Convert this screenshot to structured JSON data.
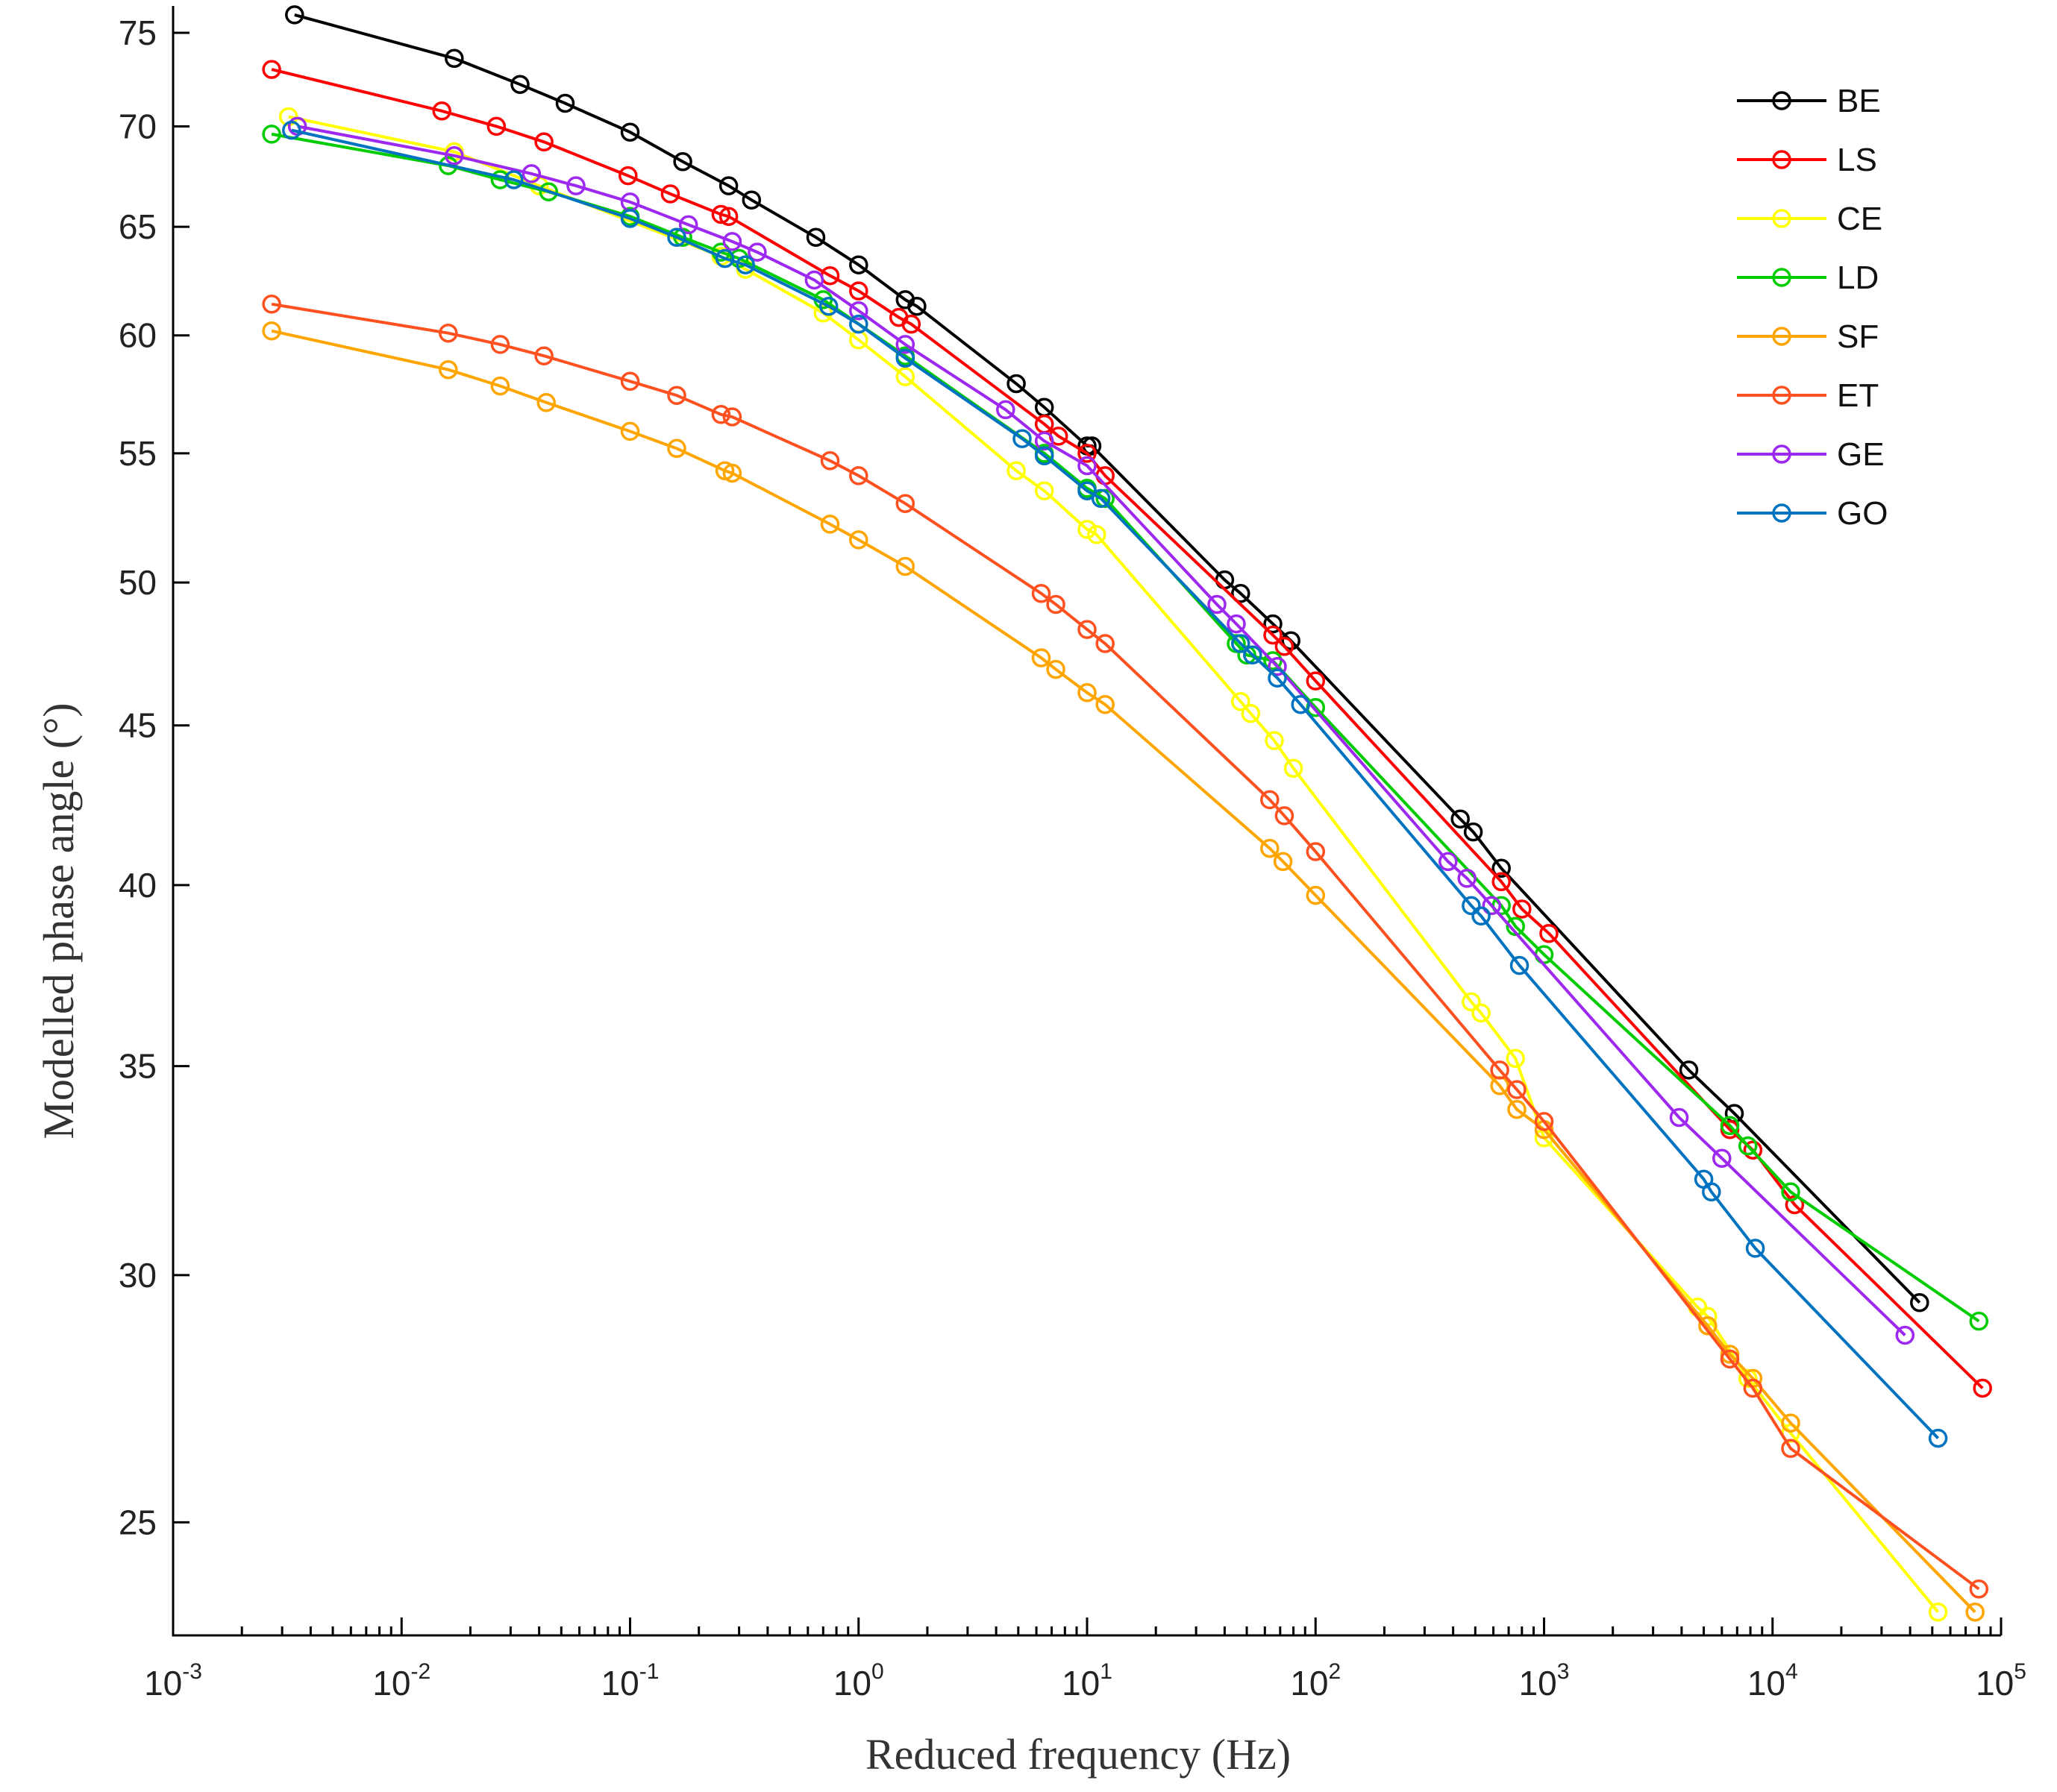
{
  "chart_data": {
    "type": "line",
    "title": "",
    "xlabel": "Reduced frequency (Hz)",
    "ylabel": "Modelled phase angle (°)",
    "xscale": "log",
    "yscale": "log",
    "xlim": [
      0.001,
      100000
    ],
    "ylim": [
      23,
      76.5
    ],
    "x_ticks": [
      {
        "base": "10",
        "exp": "-3",
        "value": 0.001
      },
      {
        "base": "10",
        "exp": "-2",
        "value": 0.01
      },
      {
        "base": "10",
        "exp": "-1",
        "value": 0.1
      },
      {
        "base": "10",
        "exp": "0",
        "value": 1
      },
      {
        "base": "10",
        "exp": "1",
        "value": 10
      },
      {
        "base": "10",
        "exp": "2",
        "value": 100
      },
      {
        "base": "10",
        "exp": "3",
        "value": 1000
      },
      {
        "base": "10",
        "exp": "4",
        "value": 10000
      },
      {
        "base": "10",
        "exp": "5",
        "value": 100000
      }
    ],
    "y_ticks": [
      "25",
      "30",
      "35",
      "40",
      "45",
      "50",
      "55",
      "60",
      "65",
      "70",
      "75"
    ],
    "legend_position": "top-right",
    "series": [
      {
        "name": "BE",
        "color": "#000000",
        "points": [
          [
            0.0034,
            76
          ],
          [
            0.017,
            73.6
          ],
          [
            0.033,
            72.2
          ],
          [
            0.052,
            71.2
          ],
          [
            0.1,
            69.7
          ],
          [
            0.17,
            68.2
          ],
          [
            0.27,
            67
          ],
          [
            0.34,
            66.3
          ],
          [
            0.65,
            64.5
          ],
          [
            1.0,
            63.2
          ],
          [
            1.6,
            61.6
          ],
          [
            1.8,
            61.3
          ],
          [
            4.9,
            57.9
          ],
          [
            6.5,
            56.9
          ],
          [
            10,
            55.3
          ],
          [
            10.5,
            55.3
          ],
          [
            40,
            50.1
          ],
          [
            47,
            49.6
          ],
          [
            65,
            48.5
          ],
          [
            78,
            47.9
          ],
          [
            430,
            42
          ],
          [
            490,
            41.6
          ],
          [
            650,
            40.5
          ],
          [
            4300,
            34.9
          ],
          [
            6800,
            33.8
          ],
          [
            44000,
            29.4
          ]
        ]
      },
      {
        "name": "LS",
        "color": "#ff0000",
        "points": [
          [
            0.0027,
            73
          ],
          [
            0.015,
            70.8
          ],
          [
            0.026,
            70
          ],
          [
            0.042,
            69.2
          ],
          [
            0.098,
            67.5
          ],
          [
            0.15,
            66.6
          ],
          [
            0.25,
            65.6
          ],
          [
            0.27,
            65.5
          ],
          [
            0.75,
            62.7
          ],
          [
            1.0,
            62
          ],
          [
            1.5,
            60.8
          ],
          [
            1.7,
            60.5
          ],
          [
            6.5,
            56.2
          ],
          [
            7.5,
            55.7
          ],
          [
            10,
            55
          ],
          [
            12,
            54.1
          ],
          [
            65,
            48.1
          ],
          [
            73,
            47.7
          ],
          [
            100,
            46.5
          ],
          [
            650,
            40.1
          ],
          [
            800,
            39.3
          ],
          [
            1050,
            38.6
          ],
          [
            6500,
            33.4
          ],
          [
            8200,
            32.9
          ],
          [
            12500,
            31.6
          ],
          [
            83000,
            27.6
          ]
        ]
      },
      {
        "name": "CE",
        "color": "#ffff00",
        "points": [
          [
            0.0032,
            70.5
          ],
          [
            0.017,
            68.7
          ],
          [
            0.04,
            67
          ],
          [
            0.25,
            63.6
          ],
          [
            0.32,
            63
          ],
          [
            0.7,
            61
          ],
          [
            1.0,
            59.8
          ],
          [
            1.6,
            58.2
          ],
          [
            4.9,
            54.3
          ],
          [
            6.5,
            53.5
          ],
          [
            10,
            52
          ],
          [
            11,
            51.8
          ],
          [
            47,
            45.8
          ],
          [
            52,
            45.4
          ],
          [
            66,
            44.5
          ],
          [
            80,
            43.6
          ],
          [
            480,
            36.7
          ],
          [
            530,
            36.4
          ],
          [
            750,
            35.2
          ],
          [
            1000,
            33.2
          ],
          [
            4700,
            29.3
          ],
          [
            5200,
            29.1
          ],
          [
            7800,
            27.8
          ],
          [
            12000,
            26.7
          ],
          [
            53000,
            23.4
          ]
        ]
      },
      {
        "name": "LD",
        "color": "#00cc00",
        "points": [
          [
            0.0027,
            69.6
          ],
          [
            0.016,
            68
          ],
          [
            0.027,
            67.3
          ],
          [
            0.044,
            66.7
          ],
          [
            0.1,
            65.5
          ],
          [
            0.17,
            64.5
          ],
          [
            0.25,
            63.8
          ],
          [
            0.3,
            63.5
          ],
          [
            0.7,
            61.6
          ],
          [
            1.6,
            59.1
          ],
          [
            6.5,
            55
          ],
          [
            10,
            53.6
          ],
          [
            12,
            53.2
          ],
          [
            45,
            47.8
          ],
          [
            50,
            47.4
          ],
          [
            65,
            47.2
          ],
          [
            100,
            45.6
          ],
          [
            650,
            39.4
          ],
          [
            750,
            38.8
          ],
          [
            1000,
            38
          ],
          [
            6500,
            33.5
          ],
          [
            7800,
            33
          ],
          [
            12000,
            31.9
          ],
          [
            80000,
            29
          ]
        ]
      },
      {
        "name": "SF",
        "color": "#ffa500",
        "points": [
          [
            0.0027,
            60.2
          ],
          [
            0.016,
            58.5
          ],
          [
            0.027,
            57.8
          ],
          [
            0.043,
            57.1
          ],
          [
            0.1,
            55.9
          ],
          [
            0.16,
            55.2
          ],
          [
            0.26,
            54.3
          ],
          [
            0.28,
            54.2
          ],
          [
            0.75,
            52.2
          ],
          [
            1.0,
            51.6
          ],
          [
            1.6,
            50.6
          ],
          [
            6.3,
            47.3
          ],
          [
            7.3,
            46.9
          ],
          [
            10,
            46.1
          ],
          [
            12,
            45.7
          ],
          [
            63,
            41.1
          ],
          [
            72,
            40.7
          ],
          [
            100,
            39.7
          ],
          [
            640,
            34.5
          ],
          [
            760,
            33.9
          ],
          [
            1000,
            33.4
          ],
          [
            5200,
            28.9
          ],
          [
            6500,
            28.3
          ],
          [
            8200,
            27.8
          ],
          [
            12000,
            26.9
          ],
          [
            77000,
            23.4
          ]
        ]
      },
      {
        "name": "ET",
        "color": "#ff5020",
        "points": [
          [
            0.0027,
            61.4
          ],
          [
            0.016,
            60.1
          ],
          [
            0.027,
            59.6
          ],
          [
            0.042,
            59.1
          ],
          [
            0.1,
            58
          ],
          [
            0.16,
            57.4
          ],
          [
            0.25,
            56.6
          ],
          [
            0.28,
            56.5
          ],
          [
            0.75,
            54.7
          ],
          [
            1.0,
            54.1
          ],
          [
            1.6,
            53
          ],
          [
            6.3,
            49.6
          ],
          [
            7.3,
            49.2
          ],
          [
            10,
            48.3
          ],
          [
            12,
            47.8
          ],
          [
            63,
            42.6
          ],
          [
            73,
            42.1
          ],
          [
            100,
            41
          ],
          [
            640,
            34.9
          ],
          [
            760,
            34.4
          ],
          [
            1000,
            33.6
          ],
          [
            6500,
            28.2
          ],
          [
            8200,
            27.6
          ],
          [
            12000,
            26.4
          ],
          [
            80000,
            23.8
          ]
        ]
      },
      {
        "name": "GE",
        "color": "#9d28f0",
        "points": [
          [
            0.0035,
            70
          ],
          [
            0.017,
            68.5
          ],
          [
            0.037,
            67.6
          ],
          [
            0.058,
            67
          ],
          [
            0.1,
            66.2
          ],
          [
            0.18,
            65.1
          ],
          [
            0.28,
            64.3
          ],
          [
            0.36,
            63.8
          ],
          [
            0.64,
            62.5
          ],
          [
            1.0,
            61.1
          ],
          [
            1.6,
            59.6
          ],
          [
            4.4,
            56.8
          ],
          [
            6.5,
            55.5
          ],
          [
            10,
            54.5
          ],
          [
            37,
            49.2
          ],
          [
            45,
            48.5
          ],
          [
            68,
            47
          ],
          [
            380,
            40.7
          ],
          [
            460,
            40.2
          ],
          [
            590,
            39.4
          ],
          [
            3900,
            33.7
          ],
          [
            6000,
            32.7
          ],
          [
            38000,
            28.7
          ]
        ]
      },
      {
        "name": "GO",
        "color": "#0073c0",
        "points": [
          [
            0.0033,
            69.8
          ],
          [
            0.031,
            67.3
          ],
          [
            0.1,
            65.4
          ],
          [
            0.16,
            64.5
          ],
          [
            0.26,
            63.5
          ],
          [
            0.32,
            63.2
          ],
          [
            0.74,
            61.3
          ],
          [
            1.0,
            60.5
          ],
          [
            1.6,
            59
          ],
          [
            5.2,
            55.6
          ],
          [
            6.5,
            54.9
          ],
          [
            10,
            53.5
          ],
          [
            11.5,
            53.2
          ],
          [
            47,
            47.8
          ],
          [
            53,
            47.4
          ],
          [
            68,
            46.6
          ],
          [
            86,
            45.7
          ],
          [
            480,
            39.4
          ],
          [
            530,
            39.1
          ],
          [
            780,
            37.7
          ],
          [
            5000,
            32.2
          ],
          [
            5400,
            31.9
          ],
          [
            8400,
            30.6
          ],
          [
            53000,
            26.6
          ]
        ]
      }
    ]
  }
}
